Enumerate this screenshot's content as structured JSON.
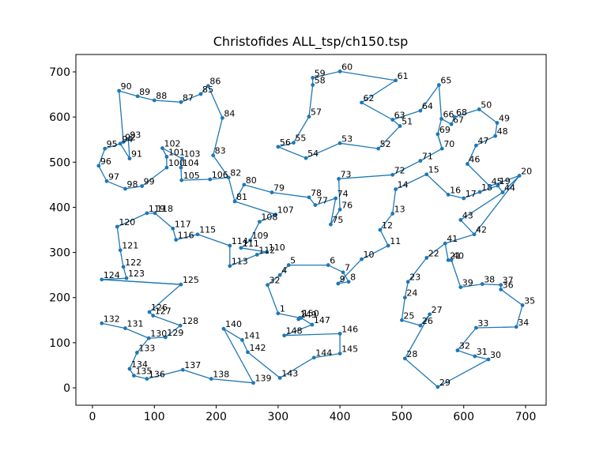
{
  "chart_data": {
    "type": "line",
    "title": "Christofides ALL_tsp/ch150.tsp",
    "xlabel": "",
    "ylabel": "",
    "xlim": [
      -20,
      730
    ],
    "ylim": [
      -38,
      740
    ],
    "xticks": [
      0,
      100,
      200,
      300,
      400,
      500,
      600,
      700
    ],
    "yticks": [
      0,
      100,
      200,
      300,
      400,
      500,
      600,
      700
    ],
    "grid": false,
    "color": "#1f77b4",
    "points": [
      {
        "id": "1",
        "x": 300,
        "y": 165
      },
      {
        "id": "2",
        "x": 335,
        "y": 155
      },
      {
        "id": "4",
        "x": 303,
        "y": 250
      },
      {
        "id": "5",
        "x": 317,
        "y": 272
      },
      {
        "id": "6",
        "x": 381,
        "y": 272
      },
      {
        "id": "7",
        "x": 405,
        "y": 256
      },
      {
        "id": "8",
        "x": 414,
        "y": 235
      },
      {
        "id": "9",
        "x": 397,
        "y": 231
      },
      {
        "id": "10",
        "x": 435,
        "y": 285
      },
      {
        "id": "11",
        "x": 478,
        "y": 315
      },
      {
        "id": "12",
        "x": 465,
        "y": 350
      },
      {
        "id": "13",
        "x": 485,
        "y": 386
      },
      {
        "id": "14",
        "x": 490,
        "y": 440
      },
      {
        "id": "15",
        "x": 540,
        "y": 473
      },
      {
        "id": "16",
        "x": 575,
        "y": 428
      },
      {
        "id": "17",
        "x": 600,
        "y": 420
      },
      {
        "id": "18",
        "x": 626,
        "y": 434
      },
      {
        "id": "19",
        "x": 655,
        "y": 448
      },
      {
        "id": "20",
        "x": 690,
        "y": 470
      },
      {
        "id": "21",
        "x": 575,
        "y": 283
      },
      {
        "id": "22",
        "x": 540,
        "y": 288
      },
      {
        "id": "23",
        "x": 510,
        "y": 235
      },
      {
        "id": "24",
        "x": 505,
        "y": 200
      },
      {
        "id": "25",
        "x": 500,
        "y": 150
      },
      {
        "id": "26",
        "x": 530,
        "y": 138
      },
      {
        "id": "27",
        "x": 545,
        "y": 163
      },
      {
        "id": "28",
        "x": 505,
        "y": 65
      },
      {
        "id": "29",
        "x": 558,
        "y": 2
      },
      {
        "id": "30",
        "x": 640,
        "y": 63
      },
      {
        "id": "31",
        "x": 618,
        "y": 70
      },
      {
        "id": "32",
        "x": 590,
        "y": 83
      },
      {
        "id": "33",
        "x": 620,
        "y": 133
      },
      {
        "id": "34",
        "x": 685,
        "y": 135
      },
      {
        "id": "35",
        "x": 695,
        "y": 183
      },
      {
        "id": "36",
        "x": 660,
        "y": 218
      },
      {
        "id": "37",
        "x": 660,
        "y": 228
      },
      {
        "id": "38",
        "x": 630,
        "y": 230
      },
      {
        "id": "39",
        "x": 595,
        "y": 223
      },
      {
        "id": "40",
        "x": 580,
        "y": 283
      },
      {
        "id": "41",
        "x": 570,
        "y": 320
      },
      {
        "id": "42",
        "x": 617,
        "y": 340
      },
      {
        "id": "43",
        "x": 595,
        "y": 372
      },
      {
        "id": "44",
        "x": 663,
        "y": 433
      },
      {
        "id": "45",
        "x": 642,
        "y": 447
      },
      {
        "id": "46",
        "x": 606,
        "y": 496
      },
      {
        "id": "47",
        "x": 620,
        "y": 537
      },
      {
        "id": "48",
        "x": 651,
        "y": 558
      },
      {
        "id": "49",
        "x": 654,
        "y": 587
      },
      {
        "id": "50",
        "x": 625,
        "y": 617
      },
      {
        "id": "51",
        "x": 497,
        "y": 580
      },
      {
        "id": "52",
        "x": 462,
        "y": 530
      },
      {
        "id": "53",
        "x": 400,
        "y": 542
      },
      {
        "id": "54",
        "x": 345,
        "y": 509
      },
      {
        "id": "55",
        "x": 325,
        "y": 543
      },
      {
        "id": "56",
        "x": 300,
        "y": 534
      },
      {
        "id": "57",
        "x": 350,
        "y": 601
      },
      {
        "id": "58",
        "x": 356,
        "y": 671
      },
      {
        "id": "59",
        "x": 356,
        "y": 687
      },
      {
        "id": "60",
        "x": 400,
        "y": 701
      },
      {
        "id": "61",
        "x": 490,
        "y": 681
      },
      {
        "id": "62",
        "x": 435,
        "y": 632
      },
      {
        "id": "63",
        "x": 485,
        "y": 594
      },
      {
        "id": "64",
        "x": 530,
        "y": 614
      },
      {
        "id": "65",
        "x": 560,
        "y": 671
      },
      {
        "id": "66",
        "x": 564,
        "y": 596
      },
      {
        "id": "67",
        "x": 580,
        "y": 584
      },
      {
        "id": "68",
        "x": 585,
        "y": 600
      },
      {
        "id": "69",
        "x": 558,
        "y": 562
      },
      {
        "id": "70",
        "x": 565,
        "y": 530
      },
      {
        "id": "71",
        "x": 530,
        "y": 503
      },
      {
        "id": "72",
        "x": 485,
        "y": 472
      },
      {
        "id": "73",
        "x": 398,
        "y": 463
      },
      {
        "id": "74",
        "x": 393,
        "y": 420
      },
      {
        "id": "75",
        "x": 385,
        "y": 362
      },
      {
        "id": "76",
        "x": 400,
        "y": 395
      },
      {
        "id": "77",
        "x": 360,
        "y": 405
      },
      {
        "id": "78",
        "x": 350,
        "y": 422
      },
      {
        "id": "79",
        "x": 290,
        "y": 433
      },
      {
        "id": "80",
        "x": 245,
        "y": 450
      },
      {
        "id": "81",
        "x": 230,
        "y": 413
      },
      {
        "id": "82",
        "x": 220,
        "y": 466
      },
      {
        "id": "83",
        "x": 195,
        "y": 515
      },
      {
        "id": "84",
        "x": 210,
        "y": 598
      },
      {
        "id": "85",
        "x": 175,
        "y": 651
      },
      {
        "id": "86",
        "x": 187,
        "y": 669
      },
      {
        "id": "87",
        "x": 143,
        "y": 633
      },
      {
        "id": "88",
        "x": 100,
        "y": 637
      },
      {
        "id": "89",
        "x": 73,
        "y": 646
      },
      {
        "id": "90",
        "x": 43,
        "y": 658
      },
      {
        "id": "91",
        "x": 60,
        "y": 508
      },
      {
        "id": "92",
        "x": 50,
        "y": 545
      },
      {
        "id": "93",
        "x": 58,
        "y": 550
      },
      {
        "id": "94",
        "x": 45,
        "y": 541
      },
      {
        "id": "95",
        "x": 20,
        "y": 530
      },
      {
        "id": "96",
        "x": 10,
        "y": 492
      },
      {
        "id": "97",
        "x": 23,
        "y": 458
      },
      {
        "id": "98",
        "x": 53,
        "y": 441
      },
      {
        "id": "99",
        "x": 80,
        "y": 447
      },
      {
        "id": "100",
        "x": 120,
        "y": 488
      },
      {
        "id": "101",
        "x": 120,
        "y": 512
      },
      {
        "id": "102",
        "x": 113,
        "y": 531
      },
      {
        "id": "103",
        "x": 145,
        "y": 508
      },
      {
        "id": "104",
        "x": 143,
        "y": 488
      },
      {
        "id": "105",
        "x": 144,
        "y": 460
      },
      {
        "id": "106",
        "x": 190,
        "y": 462
      },
      {
        "id": "107",
        "x": 296,
        "y": 384
      },
      {
        "id": "108",
        "x": 270,
        "y": 368
      },
      {
        "id": "109",
        "x": 255,
        "y": 327
      },
      {
        "id": "110",
        "x": 282,
        "y": 301
      },
      {
        "id": "111",
        "x": 240,
        "y": 310
      },
      {
        "id": "112",
        "x": 266,
        "y": 295
      },
      {
        "id": "113",
        "x": 222,
        "y": 270
      },
      {
        "id": "114",
        "x": 222,
        "y": 315
      },
      {
        "id": "115",
        "x": 170,
        "y": 340
      },
      {
        "id": "116",
        "x": 135,
        "y": 328
      },
      {
        "id": "117",
        "x": 130,
        "y": 353
      },
      {
        "id": "118",
        "x": 101,
        "y": 387
      },
      {
        "id": "119",
        "x": 88,
        "y": 387
      },
      {
        "id": "120",
        "x": 40,
        "y": 357
      },
      {
        "id": "121",
        "x": 45,
        "y": 305
      },
      {
        "id": "122",
        "x": 50,
        "y": 268
      },
      {
        "id": "123",
        "x": 55,
        "y": 243
      },
      {
        "id": "124",
        "x": 15,
        "y": 240
      },
      {
        "id": "125",
        "x": 143,
        "y": 229
      },
      {
        "id": "126",
        "x": 92,
        "y": 168
      },
      {
        "id": "127",
        "x": 98,
        "y": 160
      },
      {
        "id": "128",
        "x": 142,
        "y": 138
      },
      {
        "id": "129",
        "x": 118,
        "y": 112
      },
      {
        "id": "130",
        "x": 91,
        "y": 110
      },
      {
        "id": "131",
        "x": 53,
        "y": 132
      },
      {
        "id": "132",
        "x": 15,
        "y": 143
      },
      {
        "id": "133",
        "x": 72,
        "y": 78
      },
      {
        "id": "134",
        "x": 60,
        "y": 42
      },
      {
        "id": "135",
        "x": 67,
        "y": 27
      },
      {
        "id": "136",
        "x": 88,
        "y": 20
      },
      {
        "id": "137",
        "x": 146,
        "y": 40
      },
      {
        "id": "138",
        "x": 192,
        "y": 20
      },
      {
        "id": "139",
        "x": 260,
        "y": 11
      },
      {
        "id": "140",
        "x": 212,
        "y": 131
      },
      {
        "id": "141",
        "x": 242,
        "y": 106
      },
      {
        "id": "142",
        "x": 251,
        "y": 79
      },
      {
        "id": "143",
        "x": 303,
        "y": 22
      },
      {
        "id": "144",
        "x": 358,
        "y": 67
      },
      {
        "id": "145",
        "x": 400,
        "y": 76
      },
      {
        "id": "146",
        "x": 400,
        "y": 120
      },
      {
        "id": "147",
        "x": 355,
        "y": 140
      },
      {
        "id": "148",
        "x": 310,
        "y": 116
      },
      {
        "id": "149",
        "x": 333,
        "y": 152
      },
      {
        "id": "150",
        "x": 337,
        "y": 155
      }
    ],
    "tour": [
      "1",
      "150",
      "2",
      "149",
      "147",
      "148",
      "146",
      "145",
      "144",
      "143",
      "142",
      "141",
      "140",
      "137",
      "138",
      "139",
      "143"
    ],
    "path": [
      [
        20,
        "left"
      ]
    ]
  }
}
